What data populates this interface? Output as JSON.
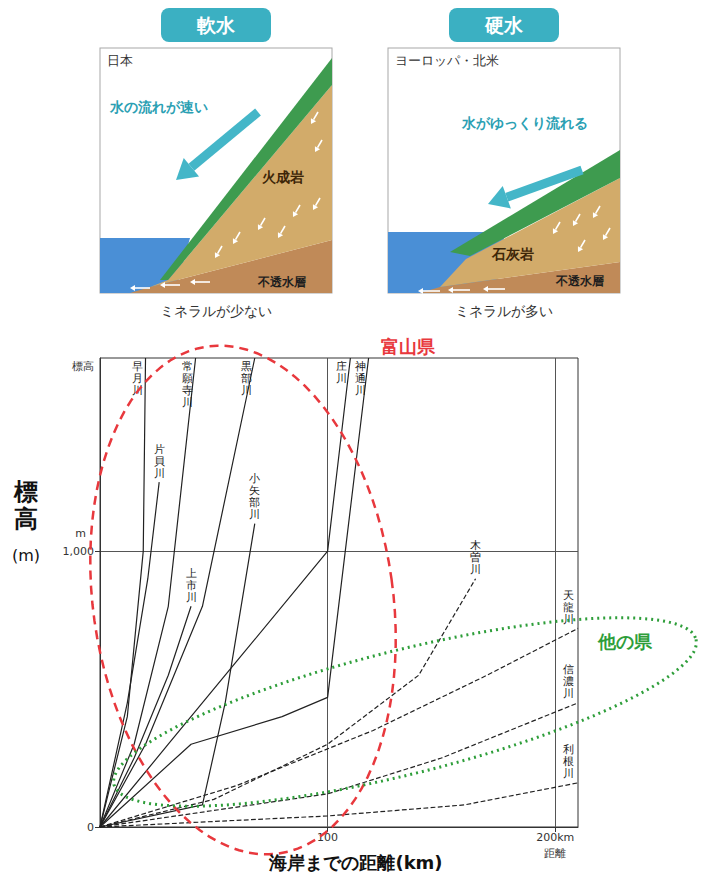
{
  "diagrams": [
    {
      "badge": "軟水",
      "region": "日本",
      "flow": "水の流れが速い",
      "rock": "火成岩",
      "layer": "不透水層",
      "caption": "ミネラルが少ない"
    },
    {
      "badge": "硬水",
      "region": "ヨーロッパ・北米",
      "flow": "水がゆっくり流れる",
      "rock": "石灰岩",
      "layer": "不透水層",
      "caption": "ミネラルが多い"
    }
  ],
  "chart_data": {
    "type": "line",
    "x_label": "海岸までの距離(km)",
    "y_label": "標高 (m)",
    "x_axis_name": "距離",
    "y_axis_name": "標高",
    "y_unit": "m",
    "xlim": [
      0,
      210
    ],
    "xticks": [
      100,
      {
        "value": 200,
        "label": "200km"
      }
    ],
    "ylim": [
      0,
      1700
    ],
    "yticks": [
      0,
      {
        "value": 1000,
        "label": "1,000"
      }
    ],
    "grid": true,
    "annotations": [
      {
        "text": "富山県",
        "color": "#e8383d"
      },
      {
        "text": "他の県",
        "color": "#2e9e3a"
      }
    ],
    "series": [
      {
        "name": "早月川",
        "color": "#222222",
        "line_style": "solid",
        "values": [
          [
            0,
            0
          ],
          [
            12,
            400
          ],
          [
            19,
            1000
          ],
          [
            20,
            1700
          ]
        ]
      },
      {
        "name": "片貝川",
        "color": "#222222",
        "line_style": "solid",
        "values": [
          [
            0,
            0
          ],
          [
            12,
            450
          ],
          [
            21,
            900
          ],
          [
            26,
            1250
          ]
        ]
      },
      {
        "name": "常願寺川",
        "color": "#222222",
        "line_style": "solid",
        "values": [
          [
            0,
            0
          ],
          [
            15,
            300
          ],
          [
            30,
            800
          ],
          [
            42,
            1700
          ]
        ]
      },
      {
        "name": "上市川",
        "color": "#222222",
        "line_style": "solid",
        "values": [
          [
            0,
            0
          ],
          [
            15,
            250
          ],
          [
            30,
            550
          ],
          [
            40,
            800
          ]
        ]
      },
      {
        "name": "黒部川",
        "color": "#222222",
        "line_style": "solid",
        "values": [
          [
            0,
            0
          ],
          [
            20,
            300
          ],
          [
            45,
            800
          ],
          [
            68,
            1700
          ]
        ]
      },
      {
        "name": "小矢部川",
        "color": "#222222",
        "line_style": "solid",
        "values": [
          [
            0,
            0
          ],
          [
            45,
            80
          ],
          [
            55,
            450
          ],
          [
            68,
            1100
          ]
        ]
      },
      {
        "name": "庄川",
        "color": "#222222",
        "line_style": "solid",
        "values": [
          [
            0,
            0
          ],
          [
            30,
            300
          ],
          [
            60,
            600
          ],
          [
            100,
            1000
          ],
          [
            110,
            1700
          ]
        ]
      },
      {
        "name": "神通川",
        "color": "#222222",
        "line_style": "solid",
        "values": [
          [
            0,
            0
          ],
          [
            40,
            300
          ],
          [
            80,
            400
          ],
          [
            100,
            470
          ],
          [
            118,
            1700
          ]
        ]
      },
      {
        "name": "木曽川",
        "color": "#222222",
        "line_style": "dashed",
        "values": [
          [
            0,
            0
          ],
          [
            50,
            100
          ],
          [
            100,
            300
          ],
          [
            140,
            550
          ],
          [
            165,
            900
          ]
        ]
      },
      {
        "name": "天龍川",
        "color": "#222222",
        "line_style": "dashed",
        "values": [
          [
            0,
            0
          ],
          [
            60,
            150
          ],
          [
            120,
            350
          ],
          [
            170,
            550
          ],
          [
            210,
            720
          ]
        ]
      },
      {
        "name": "信濃川",
        "color": "#222222",
        "line_style": "dashed",
        "values": [
          [
            0,
            0
          ],
          [
            100,
            120
          ],
          [
            150,
            250
          ],
          [
            210,
            450
          ]
        ]
      },
      {
        "name": "利根川",
        "color": "#222222",
        "line_style": "dashed",
        "values": [
          [
            0,
            0
          ],
          [
            100,
            40
          ],
          [
            160,
            80
          ],
          [
            210,
            160
          ]
        ]
      }
    ]
  }
}
